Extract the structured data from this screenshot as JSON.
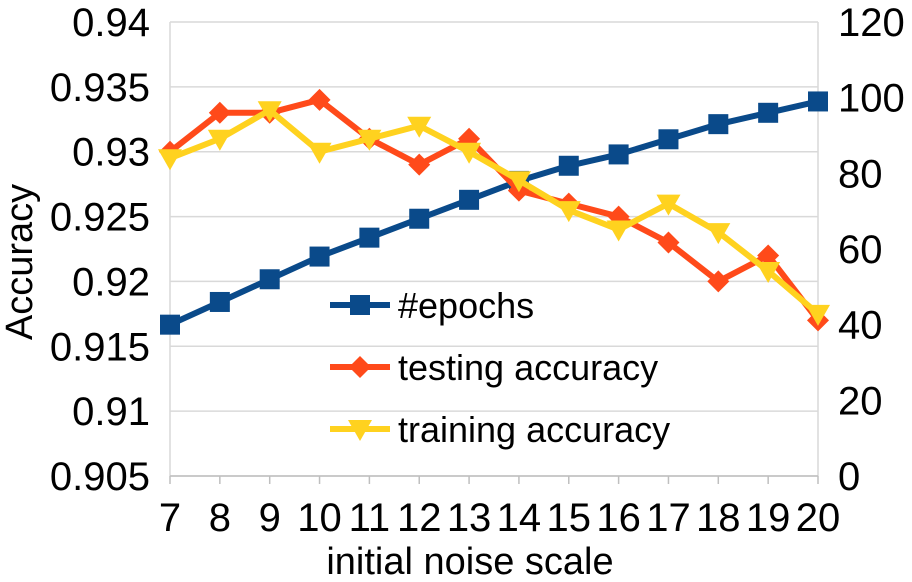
{
  "chart_data": {
    "type": "line",
    "x": [
      7,
      8,
      9,
      10,
      11,
      12,
      13,
      14,
      15,
      16,
      17,
      18,
      19,
      20
    ],
    "xlabel": "initial noise scale",
    "ylabel": "Accuracy",
    "y2label": "",
    "ylim": [
      0.905,
      0.94
    ],
    "y_ticks": [
      "0.905",
      "0.91",
      "0.915",
      "0.92",
      "0.925",
      "0.93",
      "0.935",
      "0.94"
    ],
    "y2lim": [
      0,
      120
    ],
    "y2_ticks": [
      "0",
      "20",
      "40",
      "60",
      "80",
      "100",
      "120"
    ],
    "grid": "horizontal",
    "legend_position": "center",
    "series": [
      {
        "name": "#epochs",
        "axis": "right",
        "color": "#0a4a8a",
        "marker": "square",
        "values": [
          40,
          46,
          52,
          58,
          63,
          68,
          73,
          78,
          82,
          85,
          89,
          93,
          96,
          99
        ]
      },
      {
        "name": "testing accuracy",
        "axis": "left",
        "color": "#ff4a1a",
        "marker": "diamond",
        "values": [
          0.93,
          0.933,
          0.933,
          0.934,
          0.931,
          0.929,
          0.931,
          0.927,
          0.926,
          0.925,
          0.923,
          0.92,
          0.922,
          0.917
        ]
      },
      {
        "name": "training accuracy",
        "axis": "left",
        "color": "#ffd21f",
        "marker": "triangle-down",
        "values": [
          0.9295,
          0.931,
          0.9332,
          0.93,
          0.931,
          0.932,
          0.93,
          0.9278,
          0.9255,
          0.924,
          0.926,
          0.9238,
          0.9208,
          0.9175
        ]
      }
    ]
  }
}
